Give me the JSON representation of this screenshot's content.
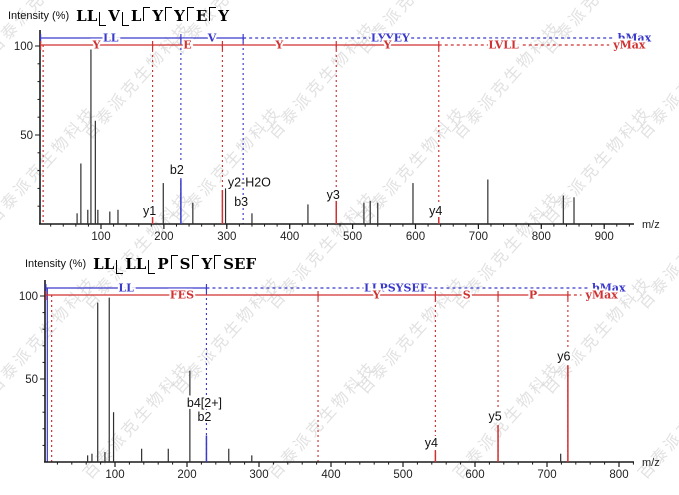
{
  "watermark": {
    "text": "百泰派克生物科技",
    "color": "#c9c9c9"
  },
  "colors": {
    "b_ion": "#3a3acc",
    "y_ion": "#d03232",
    "peak": "#2e2e2e",
    "axis": "#1a1a1a",
    "label": "#111111"
  },
  "panels": [
    {
      "intensity_label": "Intensity (%)",
      "sequence_tokens": [
        {
          "text": "LL",
          "mark": "b"
        },
        {
          "text": "V",
          "mark": "b"
        },
        {
          "text": "L",
          "mark": "none"
        },
        {
          "text": "Y",
          "mark": "y"
        },
        {
          "text": "Y",
          "mark": "y"
        },
        {
          "text": "E",
          "mark": "y"
        },
        {
          "text": "Y",
          "mark": "y"
        }
      ]
    },
    {
      "intensity_label": "Intensity (%)",
      "sequence_tokens": [
        {
          "text": "LL",
          "mark": "b"
        },
        {
          "text": "LL",
          "mark": "b"
        },
        {
          "text": "P",
          "mark": "none"
        },
        {
          "text": "S",
          "mark": "y"
        },
        {
          "text": "Y",
          "mark": "y"
        },
        {
          "text": "SEF",
          "mark": "y"
        }
      ]
    }
  ],
  "chart_data": [
    {
      "type": "bar",
      "subtype": "ms2-spectrum",
      "peptide": "LL|V|L|Y|Y|E|Y",
      "xlabel": "m/z",
      "ylabel": "Intensity (%)",
      "xlim": [
        0,
        950
      ],
      "ylim": [
        0,
        100
      ],
      "xticks": [
        100,
        200,
        300,
        400,
        500,
        600,
        700,
        800,
        900
      ],
      "yticks": [
        50,
        100
      ],
      "grid": false,
      "peaks": [
        [
          62,
          6
        ],
        [
          68,
          34
        ],
        [
          79,
          8
        ],
        [
          84,
          98
        ],
        [
          91,
          58
        ],
        [
          95,
          8
        ],
        [
          114,
          7
        ],
        [
          127,
          8
        ],
        [
          199,
          23
        ],
        [
          246,
          12
        ],
        [
          298,
          20
        ],
        [
          340,
          6
        ],
        [
          429,
          11
        ],
        [
          474,
          2
        ],
        [
          518,
          12
        ],
        [
          528,
          13
        ],
        [
          540,
          12
        ],
        [
          596,
          23
        ],
        [
          715,
          25
        ],
        [
          835,
          16
        ],
        [
          852,
          15
        ]
      ],
      "annotated_peaks": [
        {
          "label": "y1",
          "mz": 182,
          "intensity": 5,
          "ion": "y",
          "label_pct": 5,
          "label_dx": -3
        },
        {
          "label": "b2",
          "mz": 227,
          "intensity": 25,
          "ion": "b",
          "label_pct": 28,
          "label_dx": -4
        },
        {
          "label": "y2-H2O",
          "mz": 293,
          "intensity": 19,
          "ion": "y",
          "label_pct": 21,
          "label_dx": 27
        },
        {
          "label": "b3",
          "mz": 326,
          "intensity": 0,
          "ion": "b",
          "label_pct": 10,
          "label_dx": -2
        },
        {
          "label": "y3",
          "mz": 474,
          "intensity": 15,
          "ion": "y",
          "label_pct": 14,
          "label_dx": -3
        },
        {
          "label": "y4",
          "mz": 637,
          "intensity": 4,
          "ion": "y",
          "label_pct": 5,
          "label_dx": -3
        }
      ],
      "guides": [
        {
          "ion": "y",
          "mz": 8,
          "style": "dashed"
        }
      ],
      "b_bracket": {
        "segments": [
          {
            "label": "LL",
            "from": 4,
            "to": 227
          },
          {
            "label": "V",
            "from": 227,
            "to": 326
          }
        ],
        "dashed_to": 915,
        "dashed_label": "LYYEY",
        "dashed_label_mz": 560,
        "end_label": "bMax"
      },
      "y_bracket": {
        "segments": [
          {
            "label": "Y",
            "from": 4,
            "to": 182
          },
          {
            "label": "E",
            "from": 182,
            "to": 293
          },
          {
            "label": "Y",
            "from": 293,
            "to": 474
          },
          {
            "label": "Y",
            "from": 474,
            "to": 637
          }
        ],
        "dashed_to": 908,
        "dashed_label": "LVLL",
        "dashed_label_mz": 740,
        "end_label": "yMax"
      }
    },
    {
      "type": "bar",
      "subtype": "ms2-spectrum",
      "peptide": "LL|LL|P|S|Y|SEF",
      "xlabel": "m/z",
      "ylabel": "Intensity (%)",
      "xlim": [
        0,
        830
      ],
      "ylim": [
        0,
        100
      ],
      "xticks": [
        100,
        200,
        300,
        400,
        500,
        600,
        700,
        800
      ],
      "yticks": [
        50,
        100
      ],
      "grid": false,
      "peaks": [
        [
          62,
          4
        ],
        [
          68,
          5
        ],
        [
          76,
          96
        ],
        [
          86,
          6
        ],
        [
          92,
          99
        ],
        [
          98,
          30
        ],
        [
          137,
          8
        ],
        [
          174,
          8
        ],
        [
          204,
          55
        ],
        [
          258,
          8
        ],
        [
          290,
          4
        ],
        [
          719,
          5
        ]
      ],
      "annotated_peaks": [
        {
          "label": "",
          "mz": 382,
          "intensity": 0,
          "ion": "y",
          "label_pct": 0,
          "label_dx": 0
        },
        {
          "label": "b4[2+]",
          "label2": "b2",
          "mz": 227,
          "intensity": 16,
          "ion": "b",
          "label_pct": 33,
          "label_dx": -2
        },
        {
          "label": "y4",
          "mz": 545,
          "intensity": 7,
          "ion": "y",
          "label_pct": 9,
          "label_dx": -4
        },
        {
          "label": "y5",
          "mz": 632,
          "intensity": 22,
          "ion": "y",
          "label_pct": 25,
          "label_dx": -3
        },
        {
          "label": "y6",
          "mz": 729,
          "intensity": 58,
          "ion": "y",
          "label_pct": 61,
          "label_dx": -4
        }
      ],
      "guides": [
        {
          "ion": "b",
          "mz": 6,
          "style": "solid"
        },
        {
          "ion": "y",
          "mz": 12,
          "style": "dashed"
        }
      ],
      "b_bracket": {
        "segments": [
          {
            "label": "LL",
            "from": 4,
            "to": 227
          }
        ],
        "dashed_to": 757,
        "dashed_label": "LLPSYSEF",
        "dashed_label_mz": 490,
        "end_label": "bMax"
      },
      "y_bracket": {
        "segments": [
          {
            "label": "FES",
            "from": 4,
            "to": 382
          },
          {
            "label": "Y",
            "from": 382,
            "to": 545
          },
          {
            "label": "S",
            "from": 545,
            "to": 632
          },
          {
            "label": "P",
            "from": 632,
            "to": 729
          }
        ],
        "dashed_to": 748,
        "dashed_label": "",
        "end_label": "yMax"
      }
    }
  ]
}
